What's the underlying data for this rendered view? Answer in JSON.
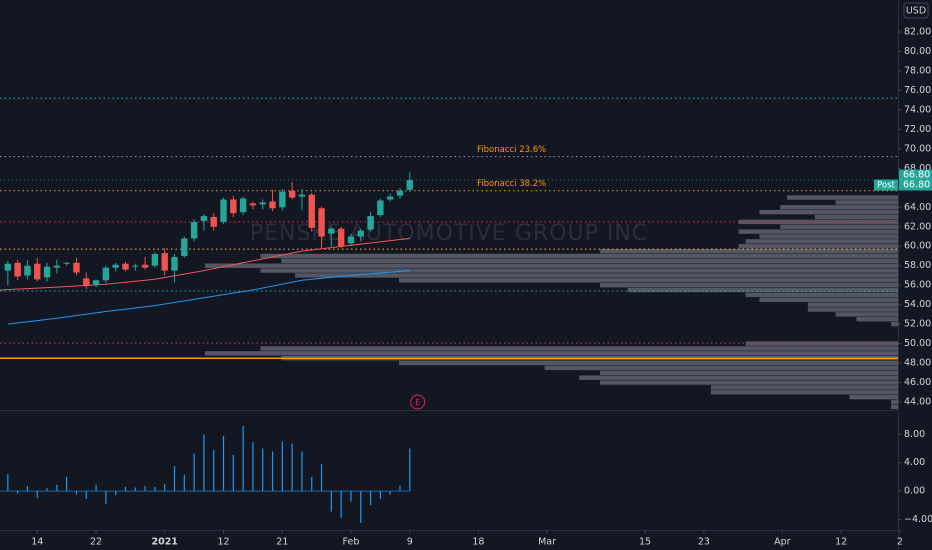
{
  "header": {
    "currency": "USD"
  },
  "chart_data": [
    {
      "type": "candlestick",
      "watermark": "PENSKE AUTOMOTIVE GROUP INC",
      "xlim": [
        -0.8,
        90.8
      ],
      "xticks": [
        {
          "value": 3,
          "label": "14"
        },
        {
          "value": 9,
          "label": "22"
        },
        {
          "value": 16,
          "label": "2021"
        },
        {
          "value": 22,
          "label": "12"
        },
        {
          "value": 28,
          "label": "21"
        },
        {
          "value": 35,
          "label": "Feb"
        },
        {
          "value": 41,
          "label": "9"
        },
        {
          "value": 48,
          "label": "18"
        },
        {
          "value": 55,
          "label": "Mar"
        },
        {
          "value": 65,
          "label": "15"
        },
        {
          "value": 71,
          "label": "23"
        },
        {
          "value": 79,
          "label": "Apr"
        },
        {
          "value": 85,
          "label": "12"
        },
        {
          "value": 91,
          "label": "2"
        }
      ],
      "ylim": [
        43.18,
        85.29
      ],
      "yticks": [
        {
          "value": 82,
          "label": "82.00"
        },
        {
          "value": 80,
          "label": "80.00"
        },
        {
          "value": 78,
          "label": "78.00"
        },
        {
          "value": 76,
          "label": "76.00"
        },
        {
          "value": 74,
          "label": "74.00"
        },
        {
          "value": 72,
          "label": "72.00"
        },
        {
          "value": 70,
          "label": "70.00"
        },
        {
          "value": 68,
          "label": "68.00"
        },
        {
          "value": 64,
          "label": "64.00"
        },
        {
          "value": 62,
          "label": "62.00"
        },
        {
          "value": 60,
          "label": "60.00"
        },
        {
          "value": 58,
          "label": "58.00"
        },
        {
          "value": 56,
          "label": "56.00"
        },
        {
          "value": 54,
          "label": "54.00"
        },
        {
          "value": 52,
          "label": "52.00"
        },
        {
          "value": 50,
          "label": "50.00"
        },
        {
          "value": 48,
          "label": "48.00"
        },
        {
          "value": 46,
          "label": "46.00"
        },
        {
          "value": 44,
          "label": "44.00"
        }
      ],
      "up_color": "#26a69a",
      "down_color": "#ef5350",
      "open": [
        57.5,
        58.3,
        57.0,
        58.2,
        56.8,
        57.8,
        58.2,
        58.3,
        56.7,
        56.0,
        56.5,
        57.8,
        58.2,
        57.9,
        58.1,
        58.0,
        59.3,
        57.5,
        59.0,
        60.8,
        62.6,
        63.0,
        62.5,
        64.8,
        63.5,
        64.4,
        64.3,
        64.6,
        64.0,
        65.7,
        65.1,
        65.3,
        63.9,
        61.3,
        61.8,
        60.3,
        61.0,
        61.7,
        63.2,
        64.8,
        65.2,
        65.8
      ],
      "high": [
        58.5,
        58.6,
        58.6,
        58.8,
        58.3,
        58.6,
        58.4,
        58.8,
        57.3,
        56.6,
        58.0,
        58.3,
        58.4,
        58.2,
        58.9,
        59.4,
        59.8,
        59.2,
        61.0,
        62.8,
        63.3,
        63.4,
        65.0,
        65.2,
        65.1,
        64.6,
        64.8,
        65.8,
        65.9,
        66.6,
        65.9,
        65.5,
        64.1,
        62.0,
        62.0,
        61.3,
        61.8,
        63.5,
        64.9,
        65.4,
        66.0,
        67.6
      ],
      "low": [
        56.0,
        56.5,
        56.6,
        56.4,
        56.4,
        57.2,
        58.0,
        57.0,
        55.6,
        55.8,
        56.2,
        57.4,
        57.4,
        57.5,
        57.6,
        57.8,
        57.0,
        56.3,
        58.8,
        60.5,
        61.6,
        61.6,
        62.3,
        63.0,
        63.2,
        63.8,
        63.8,
        63.6,
        63.7,
        64.8,
        63.7,
        61.5,
        59.8,
        60.0,
        59.8,
        60.0,
        60.5,
        61.5,
        63.0,
        64.6,
        64.9,
        65.6
      ],
      "close": [
        58.2,
        56.9,
        58.0,
        56.6,
        57.9,
        58.0,
        58.3,
        57.3,
        55.9,
        56.5,
        57.8,
        58.1,
        57.6,
        58.0,
        57.8,
        59.2,
        57.5,
        58.9,
        60.8,
        62.5,
        63.1,
        62.0,
        64.8,
        63.4,
        64.9,
        64.2,
        64.5,
        63.9,
        65.6,
        65.0,
        65.3,
        61.9,
        61.0,
        61.8,
        60.0,
        61.0,
        61.6,
        63.1,
        64.7,
        65.1,
        65.7,
        66.8
      ],
      "moving_averages": [
        {
          "color": "#f7525f",
          "x": [
            -0.8,
            5,
            10,
            15,
            20,
            25,
            30,
            35,
            41
          ],
          "values": [
            55.5,
            55.8,
            56.1,
            56.6,
            57.5,
            58.5,
            59.5,
            60.1,
            60.8
          ]
        },
        {
          "color": "#2196f3",
          "x": [
            0,
            5,
            10,
            15,
            20,
            25,
            30,
            35,
            41
          ],
          "values": [
            52.0,
            52.6,
            53.3,
            53.9,
            54.7,
            55.5,
            56.5,
            57.0,
            57.5
          ]
        }
      ],
      "levels": [
        {
          "value": 75.2,
          "color": "#00bcd4",
          "style": "dotted"
        },
        {
          "value": 69.2,
          "color": "#9598a1",
          "style": "dotted",
          "label": "Fibonacci 23.6%",
          "label_color": "#ff9800"
        },
        {
          "value": 65.7,
          "color": "#ff9800",
          "style": "dotted",
          "label": "Fibonacci 38.2%",
          "label_color": "#ff9800"
        },
        {
          "value": 62.5,
          "color": "#e91e63",
          "style": "dotted"
        },
        {
          "value": 59.7,
          "color": "#ffb74d",
          "style": "dotted"
        },
        {
          "value": 55.4,
          "color": "#00bcd4",
          "style": "dotted"
        },
        {
          "value": 50.05,
          "color": "#e91e63",
          "style": "dotted"
        },
        {
          "value": 48.5,
          "color": "#ff9800",
          "style": "solid"
        }
      ],
      "volume_profile": {
        "color": "#6a6d78",
        "xlim": [
          0,
          100
        ],
        "prices": [
          65.0,
          64.5,
          64.0,
          63.5,
          63.0,
          62.5,
          62.0,
          61.5,
          61.0,
          60.5,
          60.0,
          59.5,
          59.0,
          58.5,
          58.0,
          57.5,
          57.0,
          56.5,
          56.0,
          55.5,
          55.0,
          54.5,
          54.0,
          53.5,
          53.0,
          52.5,
          52.0,
          50.0,
          49.5,
          49.0,
          48.5,
          48.0,
          47.5,
          47.0,
          46.5,
          46.0,
          45.5,
          45.0,
          44.5,
          44.0,
          43.5
        ],
        "values": [
          16,
          9,
          17,
          20,
          12,
          23,
          17,
          23,
          20,
          22,
          23,
          43,
          92,
          89,
          100,
          92,
          87,
          72,
          43,
          39,
          22,
          20,
          13,
          13,
          9,
          6,
          1,
          22,
          92,
          100,
          89,
          72,
          51,
          43,
          46,
          43,
          27,
          27,
          7,
          1,
          1
        ]
      },
      "price_labels": [
        {
          "value": 66.8,
          "label": "66.80",
          "color": "#26a69a"
        },
        {
          "value": 66.8,
          "label": "66.80",
          "tag": "Post",
          "color": "#26a69a"
        }
      ],
      "event": {
        "label": "E",
        "x": 41.8,
        "color": "#e91e63"
      }
    },
    {
      "type": "histogram",
      "ylim": [
        -5.5,
        11.44
      ],
      "yticks": [
        {
          "value": 8,
          "label": "8.00"
        },
        {
          "value": 4,
          "label": "4.00"
        },
        {
          "value": 0,
          "label": "0.00"
        },
        {
          "value": -4,
          "label": "−4.00"
        }
      ],
      "color": "#2196f3",
      "values": [
        2.4,
        -0.4,
        0.7,
        -1.0,
        0.4,
        0.9,
        2.0,
        -0.5,
        -1.1,
        0.9,
        -1.8,
        -0.6,
        0.6,
        0.5,
        0.7,
        0.6,
        1.0,
        3.5,
        2.3,
        5.3,
        8.0,
        5.8,
        7.8,
        5.1,
        9.2,
        6.9,
        6.0,
        5.6,
        7.0,
        6.7,
        5.6,
        2.0,
        3.8,
        -2.9,
        -3.8,
        -1.5,
        -4.5,
        -2.0,
        -1.1,
        -0.5,
        0.8,
        6.0
      ]
    }
  ]
}
